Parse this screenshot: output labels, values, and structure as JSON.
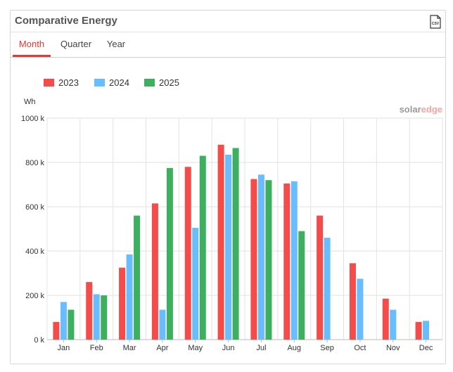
{
  "widget": {
    "title": "Comparative Energy",
    "csv_icon": "csv-export-icon",
    "tabs": [
      {
        "label": "Month",
        "active": true
      },
      {
        "label": "Quarter",
        "active": false
      },
      {
        "label": "Year",
        "active": false
      }
    ],
    "brand_text": "solaredge",
    "colors": {
      "2023": "#f44b4b",
      "2024": "#69bdfd",
      "2025": "#3daf5e",
      "accent": "#e53935"
    }
  },
  "chart_data": {
    "type": "bar",
    "categories": [
      "Jan",
      "Feb",
      "Mar",
      "Apr",
      "May",
      "Jun",
      "Jul",
      "Aug",
      "Sep",
      "Oct",
      "Nov",
      "Dec"
    ],
    "series": [
      {
        "name": "2023",
        "values": [
          80000,
          260000,
          325000,
          615000,
          780000,
          880000,
          725000,
          705000,
          560000,
          345000,
          185000,
          80000
        ]
      },
      {
        "name": "2024",
        "values": [
          170000,
          205000,
          385000,
          135000,
          505000,
          835000,
          745000,
          715000,
          460000,
          275000,
          135000,
          85000
        ]
      },
      {
        "name": "2025",
        "values": [
          135000,
          200000,
          560000,
          775000,
          830000,
          865000,
          720000,
          490000,
          null,
          null,
          null,
          null
        ]
      }
    ],
    "ylabel": "Wh",
    "ylim": [
      0,
      1000000
    ],
    "yticks": [
      "0 k",
      "200 k",
      "400 k",
      "600 k",
      "800 k",
      "1000 k"
    ],
    "grid": true,
    "legend": "top-left"
  }
}
